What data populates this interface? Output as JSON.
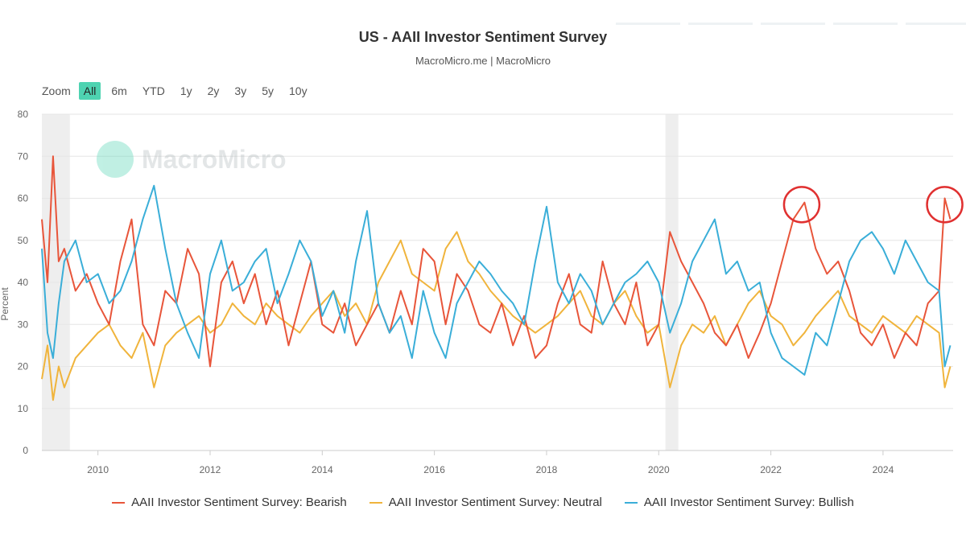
{
  "header": {
    "title": "US - AAII Investor Sentiment Survey",
    "subtitle": "MacroMicro.me | MacroMicro"
  },
  "zoom": {
    "label": "Zoom",
    "options": [
      "All",
      "6m",
      "YTD",
      "1y",
      "2y",
      "3y",
      "5y",
      "10y"
    ],
    "selected": "All"
  },
  "watermark": {
    "text": "MacroMicro"
  },
  "chart_data": {
    "type": "line",
    "ylabel": "Percent",
    "xlabel": "",
    "ylim": [
      0,
      80
    ],
    "yticks": [
      0,
      10,
      20,
      30,
      40,
      50,
      60,
      70,
      80
    ],
    "xlim": [
      2009.0,
      2025.25
    ],
    "xticks": [
      2010,
      2012,
      2014,
      2016,
      2018,
      2020,
      2022,
      2024
    ],
    "grid": true,
    "legend": "bottom",
    "recessions": [
      [
        2009.0,
        2009.5
      ],
      [
        2020.12,
        2020.35
      ]
    ],
    "annotations": [
      {
        "type": "circle",
        "x": 2022.55,
        "y": 58.5,
        "color": "#e03030"
      },
      {
        "type": "circle",
        "x": 2025.1,
        "y": 58.5,
        "color": "#e03030"
      }
    ],
    "series": [
      {
        "name": "AAII Investor Sentiment Survey: Bearish",
        "color": "#e8553a",
        "x": [
          2009.0,
          2009.1,
          2009.2,
          2009.3,
          2009.4,
          2009.6,
          2009.8,
          2010.0,
          2010.2,
          2010.4,
          2010.6,
          2010.8,
          2011.0,
          2011.2,
          2011.4,
          2011.6,
          2011.8,
          2012.0,
          2012.2,
          2012.4,
          2012.6,
          2012.8,
          2013.0,
          2013.2,
          2013.4,
          2013.6,
          2013.8,
          2014.0,
          2014.2,
          2014.4,
          2014.6,
          2014.8,
          2015.0,
          2015.2,
          2015.4,
          2015.6,
          2015.8,
          2016.0,
          2016.2,
          2016.4,
          2016.6,
          2016.8,
          2017.0,
          2017.2,
          2017.4,
          2017.6,
          2017.8,
          2018.0,
          2018.2,
          2018.4,
          2018.6,
          2018.8,
          2019.0,
          2019.2,
          2019.4,
          2019.6,
          2019.8,
          2020.0,
          2020.2,
          2020.4,
          2020.6,
          2020.8,
          2021.0,
          2021.2,
          2021.4,
          2021.6,
          2021.8,
          2022.0,
          2022.2,
          2022.4,
          2022.6,
          2022.8,
          2023.0,
          2023.2,
          2023.4,
          2023.6,
          2023.8,
          2024.0,
          2024.2,
          2024.4,
          2024.6,
          2024.8,
          2025.0,
          2025.1,
          2025.2
        ],
        "values": [
          55,
          40,
          70,
          45,
          48,
          38,
          42,
          35,
          30,
          45,
          55,
          30,
          25,
          38,
          35,
          48,
          42,
          20,
          40,
          45,
          35,
          42,
          30,
          38,
          25,
          35,
          45,
          30,
          28,
          35,
          25,
          30,
          35,
          28,
          38,
          30,
          48,
          45,
          30,
          42,
          38,
          30,
          28,
          35,
          25,
          32,
          22,
          25,
          35,
          42,
          30,
          28,
          45,
          35,
          30,
          40,
          25,
          30,
          52,
          45,
          40,
          35,
          28,
          25,
          30,
          22,
          28,
          35,
          45,
          55,
          59,
          48,
          42,
          45,
          38,
          28,
          25,
          30,
          22,
          28,
          25,
          35,
          38,
          60,
          55
        ]
      },
      {
        "name": "AAII Investor Sentiment Survey: Neutral",
        "color": "#f0b43c",
        "x": [
          2009.0,
          2009.1,
          2009.2,
          2009.3,
          2009.4,
          2009.6,
          2009.8,
          2010.0,
          2010.2,
          2010.4,
          2010.6,
          2010.8,
          2011.0,
          2011.2,
          2011.4,
          2011.6,
          2011.8,
          2012.0,
          2012.2,
          2012.4,
          2012.6,
          2012.8,
          2013.0,
          2013.2,
          2013.4,
          2013.6,
          2013.8,
          2014.0,
          2014.2,
          2014.4,
          2014.6,
          2014.8,
          2015.0,
          2015.2,
          2015.4,
          2015.6,
          2015.8,
          2016.0,
          2016.2,
          2016.4,
          2016.6,
          2016.8,
          2017.0,
          2017.2,
          2017.4,
          2017.6,
          2017.8,
          2018.0,
          2018.2,
          2018.4,
          2018.6,
          2018.8,
          2019.0,
          2019.2,
          2019.4,
          2019.6,
          2019.8,
          2020.0,
          2020.2,
          2020.4,
          2020.6,
          2020.8,
          2021.0,
          2021.2,
          2021.4,
          2021.6,
          2021.8,
          2022.0,
          2022.2,
          2022.4,
          2022.6,
          2022.8,
          2023.0,
          2023.2,
          2023.4,
          2023.6,
          2023.8,
          2024.0,
          2024.2,
          2024.4,
          2024.6,
          2024.8,
          2025.0,
          2025.1,
          2025.2
        ],
        "values": [
          17,
          25,
          12,
          20,
          15,
          22,
          25,
          28,
          30,
          25,
          22,
          28,
          15,
          25,
          28,
          30,
          32,
          28,
          30,
          35,
          32,
          30,
          35,
          32,
          30,
          28,
          32,
          35,
          38,
          32,
          35,
          30,
          40,
          45,
          50,
          42,
          40,
          38,
          48,
          52,
          45,
          42,
          38,
          35,
          32,
          30,
          28,
          30,
          32,
          35,
          38,
          32,
          30,
          35,
          38,
          32,
          28,
          30,
          15,
          25,
          30,
          28,
          32,
          25,
          30,
          35,
          38,
          32,
          30,
          25,
          28,
          32,
          35,
          38,
          32,
          30,
          28,
          32,
          30,
          28,
          32,
          30,
          28,
          15,
          20
        ]
      },
      {
        "name": "AAII Investor Sentiment Survey: Bullish",
        "color": "#3aaed8",
        "x": [
          2009.0,
          2009.1,
          2009.2,
          2009.3,
          2009.4,
          2009.6,
          2009.8,
          2010.0,
          2010.2,
          2010.4,
          2010.6,
          2010.8,
          2011.0,
          2011.2,
          2011.4,
          2011.6,
          2011.8,
          2012.0,
          2012.2,
          2012.4,
          2012.6,
          2012.8,
          2013.0,
          2013.2,
          2013.4,
          2013.6,
          2013.8,
          2014.0,
          2014.2,
          2014.4,
          2014.6,
          2014.8,
          2015.0,
          2015.2,
          2015.4,
          2015.6,
          2015.8,
          2016.0,
          2016.2,
          2016.4,
          2016.6,
          2016.8,
          2017.0,
          2017.2,
          2017.4,
          2017.6,
          2017.8,
          2018.0,
          2018.2,
          2018.4,
          2018.6,
          2018.8,
          2019.0,
          2019.2,
          2019.4,
          2019.6,
          2019.8,
          2020.0,
          2020.2,
          2020.4,
          2020.6,
          2020.8,
          2021.0,
          2021.2,
          2021.4,
          2021.6,
          2021.8,
          2022.0,
          2022.2,
          2022.4,
          2022.6,
          2022.8,
          2023.0,
          2023.2,
          2023.4,
          2023.6,
          2023.8,
          2024.0,
          2024.2,
          2024.4,
          2024.6,
          2024.8,
          2025.0,
          2025.1,
          2025.2
        ],
        "values": [
          48,
          28,
          22,
          35,
          45,
          50,
          40,
          42,
          35,
          38,
          45,
          55,
          63,
          48,
          35,
          28,
          22,
          42,
          50,
          38,
          40,
          45,
          48,
          35,
          42,
          50,
          45,
          32,
          38,
          28,
          45,
          57,
          35,
          28,
          32,
          22,
          38,
          28,
          22,
          35,
          40,
          45,
          42,
          38,
          35,
          30,
          45,
          58,
          40,
          35,
          42,
          38,
          30,
          35,
          40,
          42,
          45,
          40,
          28,
          35,
          45,
          50,
          55,
          42,
          45,
          38,
          40,
          28,
          22,
          20,
          18,
          28,
          25,
          35,
          45,
          50,
          52,
          48,
          42,
          50,
          45,
          40,
          38,
          20,
          25
        ]
      }
    ]
  }
}
